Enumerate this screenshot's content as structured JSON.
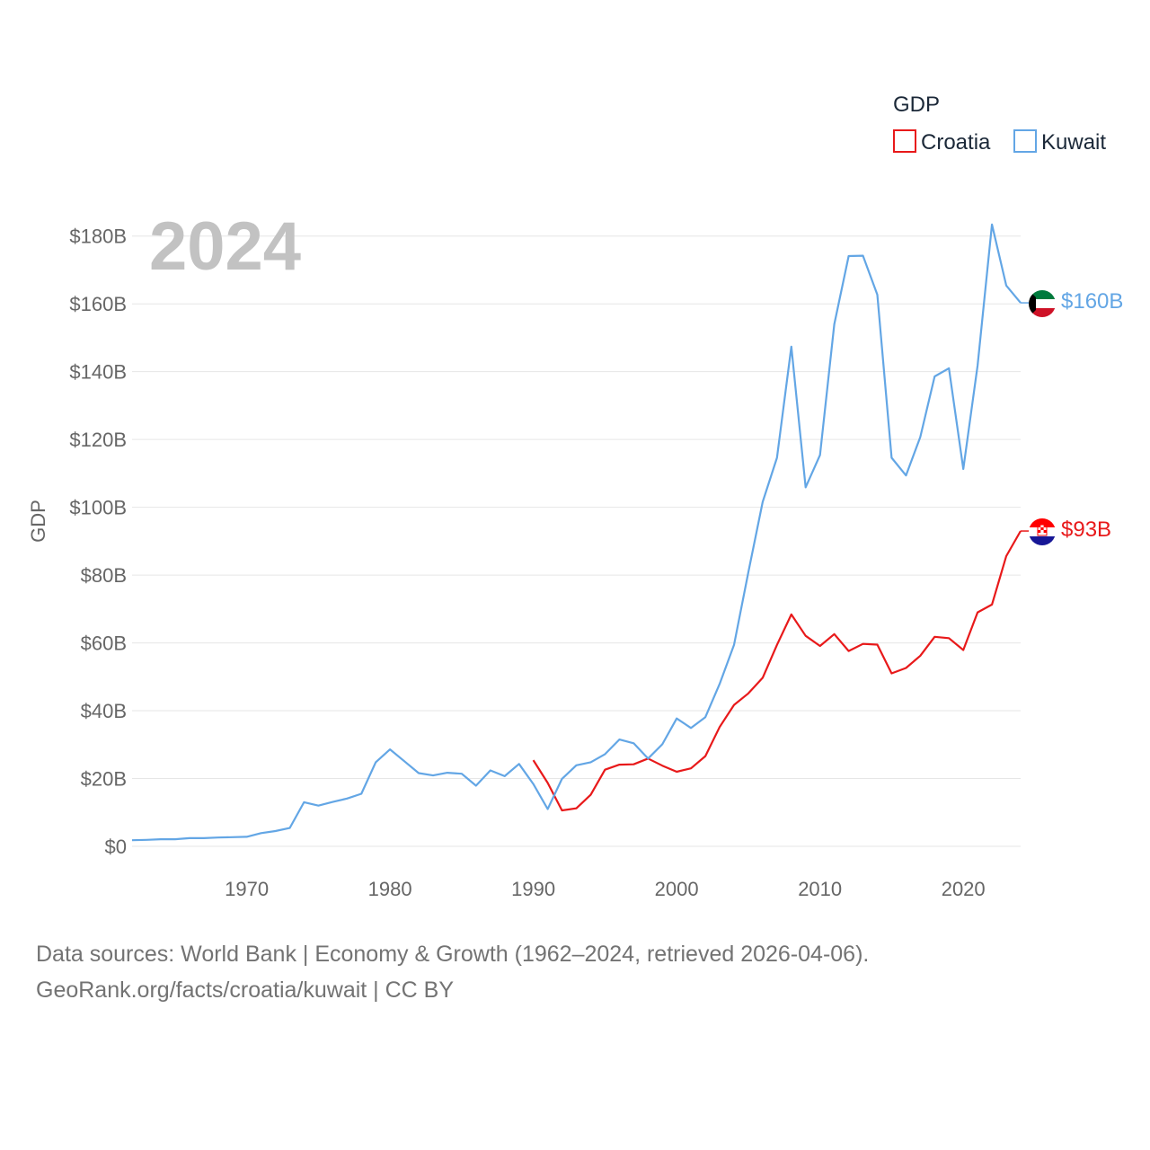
{
  "chart_data": {
    "type": "line",
    "year_label": "2024",
    "ylabel": "GDP",
    "ylim": [
      0,
      190
    ],
    "y_ticks": [
      0,
      20,
      40,
      60,
      80,
      100,
      120,
      140,
      160,
      180
    ],
    "y_tick_labels": [
      "$0",
      "$20B",
      "$40B",
      "$60B",
      "$80B",
      "$100B",
      "$120B",
      "$140B",
      "$160B",
      "$180B"
    ],
    "xlim": [
      1962,
      2024
    ],
    "x_ticks": [
      1970,
      1980,
      1990,
      2000,
      2010,
      2020
    ],
    "x_tick_labels": [
      "1970",
      "1980",
      "1990",
      "2000",
      "2010",
      "2020"
    ],
    "legend": {
      "title": "GDP",
      "items": [
        {
          "name": "Croatia",
          "color": "#e8191a"
        },
        {
          "name": "Kuwait",
          "color": "#63a6e5"
        }
      ]
    },
    "series": [
      {
        "name": "Croatia",
        "color": "#e8191a",
        "end_label": "$93B",
        "flag": "croatia-flag",
        "x": [
          1990,
          1991,
          1992,
          1993,
          1994,
          1995,
          1996,
          1997,
          1998,
          1999,
          2000,
          2001,
          2002,
          2003,
          2004,
          2005,
          2006,
          2007,
          2008,
          2009,
          2010,
          2011,
          2012,
          2013,
          2014,
          2015,
          2016,
          2017,
          2018,
          2019,
          2020,
          2021,
          2022,
          2023,
          2024
        ],
        "values": [
          25.4,
          18.7,
          10.6,
          11.2,
          15.2,
          22.6,
          24.1,
          24.2,
          25.9,
          23.8,
          22.0,
          23.0,
          26.6,
          35.2,
          41.7,
          45.1,
          49.7,
          59.4,
          68.4,
          62.1,
          59.1,
          62.6,
          57.6,
          59.7,
          59.5,
          51.0,
          52.6,
          56.2,
          61.8,
          61.4,
          57.9,
          69.0,
          71.3,
          85.6,
          93.0
        ]
      },
      {
        "name": "Kuwait",
        "color": "#63a6e5",
        "end_label": "$160B",
        "flag": "kuwait-flag",
        "x": [
          1962,
          1963,
          1964,
          1965,
          1966,
          1967,
          1968,
          1969,
          1970,
          1971,
          1972,
          1973,
          1974,
          1975,
          1976,
          1977,
          1978,
          1979,
          1980,
          1981,
          1982,
          1983,
          1984,
          1985,
          1986,
          1987,
          1988,
          1989,
          1990,
          1991,
          1992,
          1993,
          1994,
          1995,
          1996,
          1997,
          1998,
          1999,
          2000,
          2001,
          2002,
          2003,
          2004,
          2005,
          2006,
          2007,
          2008,
          2009,
          2010,
          2011,
          2012,
          2013,
          2014,
          2015,
          2016,
          2017,
          2018,
          2019,
          2020,
          2021,
          2022,
          2023,
          2024
        ],
        "values": [
          1.8,
          1.9,
          2.1,
          2.1,
          2.4,
          2.4,
          2.6,
          2.7,
          2.8,
          3.9,
          4.5,
          5.4,
          13.0,
          12.0,
          13.1,
          14.1,
          15.5,
          24.8,
          28.6,
          25.1,
          21.6,
          20.9,
          21.7,
          21.4,
          17.9,
          22.4,
          20.7,
          24.3,
          18.4,
          11.0,
          19.9,
          23.9,
          24.8,
          27.2,
          31.5,
          30.4,
          25.9,
          30.1,
          37.7,
          34.9,
          38.1,
          47.9,
          59.4,
          80.8,
          101.6,
          114.6,
          147.4,
          105.9,
          115.4,
          154.0,
          174.1,
          174.2,
          162.7,
          114.6,
          109.4,
          120.7,
          138.6,
          141.0,
          111.3,
          141.8,
          183.4,
          165.4,
          160.3
        ]
      }
    ],
    "flag_colors": {
      "kuwait": [
        "#007a3d",
        "#ffffff",
        "#ce1126",
        "#000000"
      ],
      "croatia": [
        "#ff0000",
        "#ffffff",
        "#171796"
      ]
    },
    "grid": true
  },
  "footer": {
    "line1": "Data sources: World Bank | Economy & Growth (1962–2024, retrieved 2026-04-06).",
    "line2": "GeoRank.org/facts/croatia/kuwait | CC BY"
  }
}
